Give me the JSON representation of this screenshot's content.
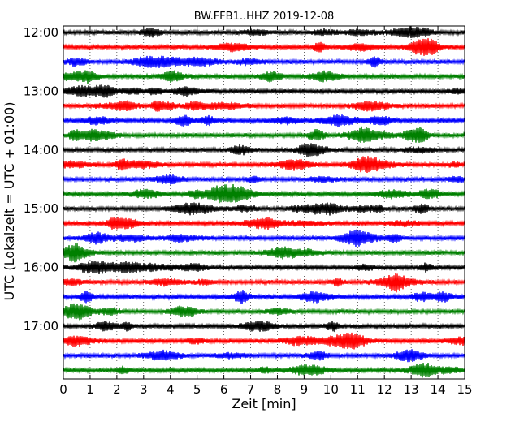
{
  "chart_data": {
    "type": "line",
    "title": "BW.FFB1..HHZ 2019-12-08",
    "xlabel": "Zeit  [min]",
    "ylabel": "UTC (Lokalzeit = UTC + 01:00)",
    "xlim": [
      0,
      15
    ],
    "x_ticks": [
      "0",
      "1",
      "2",
      "3",
      "4",
      "5",
      "6",
      "7",
      "8",
      "9",
      "10",
      "11",
      "12",
      "13",
      "14",
      "15"
    ],
    "y_ticks": [
      "12:00",
      "13:00",
      "14:00",
      "15:00",
      "16:00",
      "17:00"
    ],
    "grid": "vertical dotted lines at each minute",
    "trace_colors": [
      "#000000",
      "#ff0000",
      "#0000ff",
      "#008000"
    ],
    "traces_per_hour": 4,
    "minutes_per_trace": 15,
    "trace_start_times": [
      "12:00",
      "12:15",
      "12:30",
      "12:45",
      "13:00",
      "13:15",
      "13:30",
      "13:45",
      "14:00",
      "14:15",
      "14:30",
      "14:45",
      "15:00",
      "15:15",
      "15:30",
      "15:45",
      "16:00",
      "16:15",
      "16:30",
      "16:45",
      "17:00",
      "17:15",
      "17:30",
      "17:45"
    ],
    "trace_count": 24
  }
}
